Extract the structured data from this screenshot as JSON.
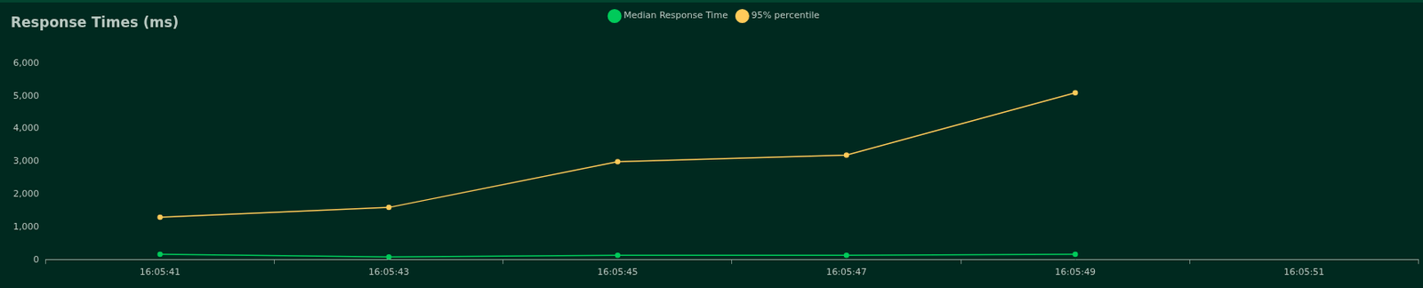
{
  "chart_data": {
    "type": "line",
    "title": "Response Times (ms)",
    "categories": [
      "16:05:41",
      "16:05:43",
      "16:05:45",
      "16:05:47",
      "16:05:49",
      "16:05:51"
    ],
    "series": [
      {
        "name": "Median Response Time",
        "color": "#00ca5a",
        "values": [
          170,
          90,
          140,
          140,
          170,
          null
        ]
      },
      {
        "name": "95% percentile",
        "color": "#ffca5a",
        "values": [
          1300,
          1600,
          3000,
          3200,
          5100,
          null
        ]
      }
    ],
    "ylim": [
      0,
      6000
    ],
    "yticks": [
      0,
      {
        "value": 1000,
        "label": "1,000"
      },
      {
        "value": 2000,
        "label": "2,000"
      },
      {
        "value": 3000,
        "label": "3,000"
      },
      {
        "value": 4000,
        "label": "4,000"
      },
      {
        "value": 5000,
        "label": "5,000"
      },
      {
        "value": 6000,
        "label": "6,000"
      }
    ],
    "grid": false,
    "legend": "top",
    "marker": "circle"
  }
}
